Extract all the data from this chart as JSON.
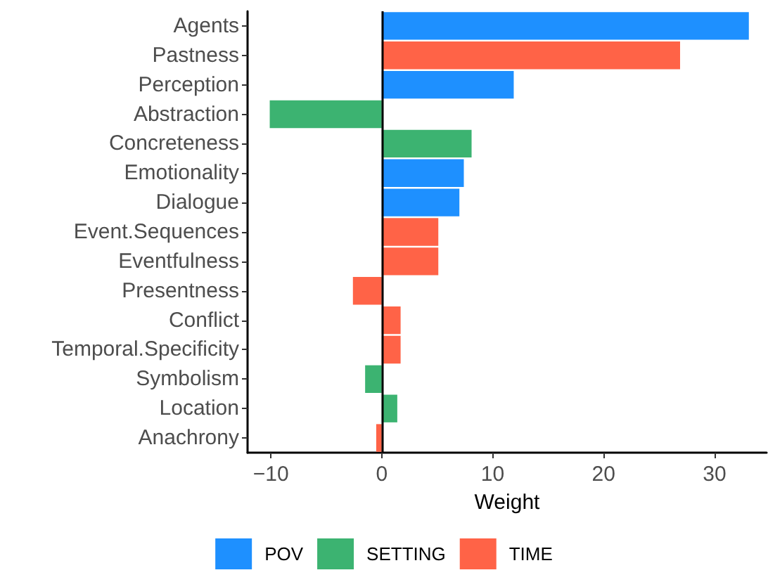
{
  "chart_data": {
    "type": "bar",
    "orientation": "horizontal",
    "xlabel": "Weight",
    "categories": [
      "Agents",
      "Pastness",
      "Perception",
      "Abstraction",
      "Concreteness",
      "Emotionality",
      "Dialogue",
      "Event.Sequences",
      "Eventfulness",
      "Presentness",
      "Conflict",
      "Temporal.Specificity",
      "Symbolism",
      "Location",
      "Anachrony"
    ],
    "series": [
      {
        "name": "POV",
        "color": "#1e90ff",
        "values": [
          33.1,
          null,
          11.9,
          null,
          null,
          7.4,
          7.0,
          null,
          null,
          null,
          null,
          null,
          null,
          null,
          null
        ]
      },
      {
        "name": "SETTING",
        "color": "#3cb371",
        "values": [
          null,
          null,
          null,
          -10.1,
          8.1,
          null,
          null,
          null,
          null,
          null,
          null,
          null,
          -1.5,
          1.4,
          null
        ]
      },
      {
        "name": "TIME",
        "color": "#ff6347",
        "values": [
          null,
          26.9,
          null,
          null,
          null,
          null,
          null,
          5.1,
          5.1,
          -2.6,
          1.7,
          1.7,
          null,
          null,
          -0.5
        ]
      }
    ],
    "xlim": [
      -12.1,
      34.7
    ],
    "xticks": [
      {
        "value": -10,
        "label": "−10"
      },
      0,
      10,
      20,
      30
    ],
    "ref_lines": [
      {
        "axis": "x",
        "value": 0,
        "color": "#000000",
        "line_style": "solid"
      }
    ],
    "grid": false,
    "legend": "bottom"
  }
}
